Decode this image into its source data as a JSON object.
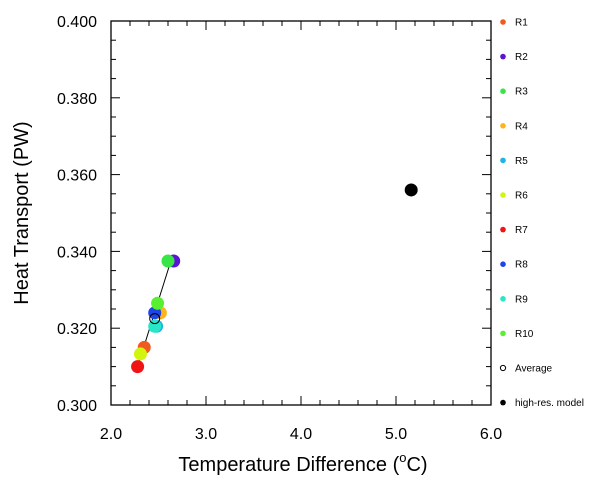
{
  "chart_data": {
    "type": "scatter",
    "xlabel": "Temperature Difference (",
    "xlabel_sup": "o",
    "xlabel_end": "C)",
    "ylabel": "Heat Transport (PW)",
    "xlim": [
      2.0,
      6.0
    ],
    "ylim": [
      0.3,
      0.4
    ],
    "x_ticks": [
      "2.0",
      "3.0",
      "4.0",
      "5.0",
      "6.0"
    ],
    "y_ticks": [
      "0.300",
      "0.320",
      "0.340",
      "0.360",
      "0.380",
      "0.400"
    ],
    "grid": false,
    "legend_position": "right",
    "series": [
      {
        "name": "R1",
        "color": "#f05a1e",
        "x": 2.35,
        "y": 0.315
      },
      {
        "name": "R2",
        "color": "#5a14d2",
        "x": 2.66,
        "y": 0.3375
      },
      {
        "name": "R3",
        "color": "#37e646",
        "x": 2.6,
        "y": 0.3375
      },
      {
        "name": "R4",
        "color": "#ffb41e",
        "x": 2.52,
        "y": 0.324
      },
      {
        "name": "R5",
        "color": "#1eb4e6",
        "x": 2.48,
        "y": 0.3205
      },
      {
        "name": "R6",
        "color": "#d2f50f",
        "x": 2.31,
        "y": 0.3133
      },
      {
        "name": "R7",
        "color": "#f01414",
        "x": 2.28,
        "y": 0.31
      },
      {
        "name": "R8",
        "color": "#1e46e6",
        "x": 2.46,
        "y": 0.324
      },
      {
        "name": "R9",
        "color": "#28e6c8",
        "x": 2.46,
        "y": 0.3205
      },
      {
        "name": "R10",
        "color": "#5af032",
        "x": 2.49,
        "y": 0.3265
      },
      {
        "name": "Average",
        "color": "#000000",
        "marker": "hollow",
        "x": 2.46,
        "y": 0.3225
      },
      {
        "name": "high-res. model",
        "color": "#000000",
        "x": 5.16,
        "y": 0.356
      }
    ],
    "connecting_line": [
      [
        2.28,
        0.31
      ],
      [
        2.63,
        0.3375
      ]
    ]
  }
}
